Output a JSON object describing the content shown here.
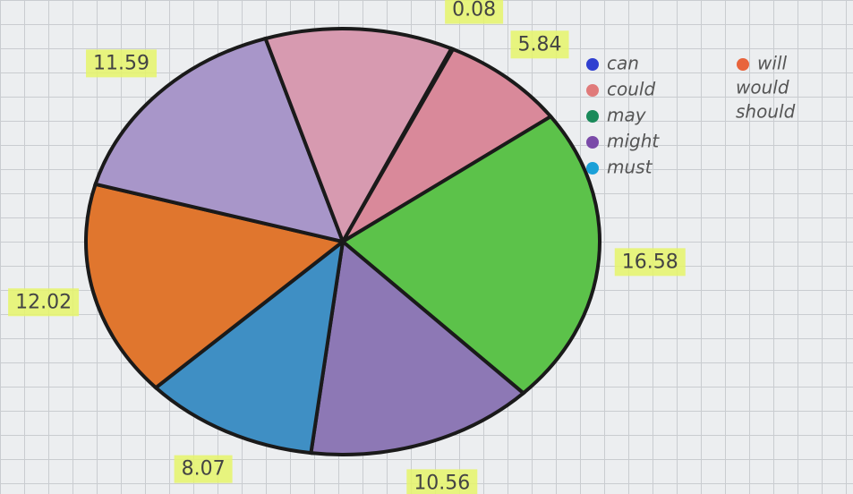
{
  "chart_data": {
    "type": "pie",
    "categories": [
      "can",
      "could",
      "may",
      "might",
      "must",
      "will",
      "would",
      "should"
    ],
    "values": [
      0.08,
      5.84,
      16.58,
      10.56,
      8.07,
      12.02,
      11.59,
      8.67
    ],
    "colors": [
      "#6f97d6",
      "#d9899a",
      "#5cc24a",
      "#8d78b5",
      "#3f8fc4",
      "#e0762e",
      "#a896c9",
      "#d79ab0"
    ],
    "legend_colors": [
      "#2f3fd0",
      "#e07a7a",
      "#1a8a5a",
      "#7a4aa8",
      "#1aa0d8",
      "#e8643c",
      null,
      null
    ]
  }
}
